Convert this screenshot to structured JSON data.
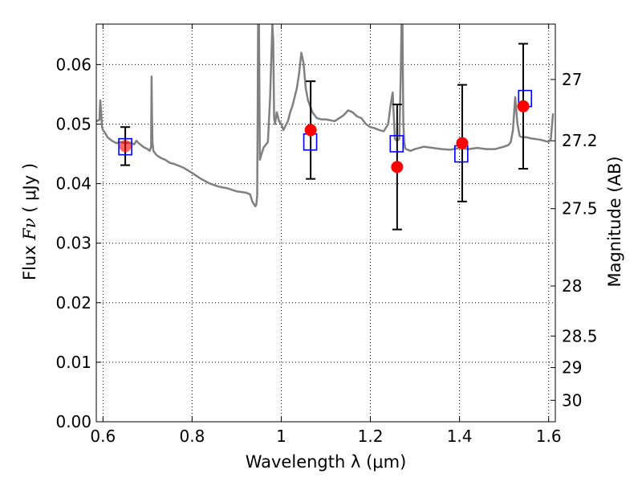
{
  "chart_data": {
    "type": "scatter",
    "xlabel": "Wavelength  λ (μm)",
    "ylabel_prefix": "Flux ",
    "ylabel_math": "Fν",
    "ylabel_unit": " ( μJy )",
    "y2label": "Magnitude (AB)",
    "xlim": [
      0.585,
      1.615
    ],
    "ylim": [
      0.0,
      0.0668
    ],
    "grid": true,
    "x_ticks": [
      0.6,
      0.8,
      1.0,
      1.2,
      1.4,
      1.6
    ],
    "x_tick_labels": [
      "0.6",
      "0.8",
      "1",
      "1.2",
      "1.4",
      "1.6"
    ],
    "y_ticks": [
      0.0,
      0.01,
      0.02,
      0.03,
      0.04,
      0.05,
      0.06
    ],
    "y_tick_labels": [
      "0.00",
      "0.01",
      "0.02",
      "0.03",
      "0.04",
      "0.05",
      "0.06"
    ],
    "y2_ticks": [
      {
        "flux": 0.0575,
        "label": "27"
      },
      {
        "flux": 0.0472,
        "label": "27.2"
      },
      {
        "flux": 0.0358,
        "label": "27.5"
      },
      {
        "flux": 0.0228,
        "label": "28"
      },
      {
        "flux": 0.0144,
        "label": "28.5"
      },
      {
        "flux": 0.0091,
        "label": "29"
      },
      {
        "flux": 0.0036,
        "label": "30"
      }
    ],
    "series": [
      {
        "kind": "model_spectrum",
        "color": "#808080",
        "x": [
          0.585,
          0.592,
          0.594,
          0.598,
          0.6,
          0.605,
          0.61,
          0.62,
          0.63,
          0.64,
          0.65,
          0.66,
          0.67,
          0.675,
          0.68,
          0.69,
          0.7,
          0.705,
          0.708,
          0.709,
          0.71,
          0.711,
          0.713,
          0.72,
          0.73,
          0.74,
          0.75,
          0.76,
          0.78,
          0.8,
          0.82,
          0.84,
          0.86,
          0.88,
          0.9,
          0.92,
          0.93,
          0.935,
          0.94,
          0.942,
          0.944,
          0.946,
          0.947,
          0.948,
          0.95,
          0.952,
          0.956,
          0.96,
          0.97,
          0.975,
          0.98,
          0.982,
          0.984,
          0.986,
          0.988,
          0.99,
          0.995,
          1.0,
          1.005,
          1.01,
          1.015,
          1.02,
          1.025,
          1.03,
          1.035,
          1.04,
          1.045,
          1.05,
          1.055,
          1.06,
          1.07,
          1.08,
          1.09,
          1.1,
          1.12,
          1.14,
          1.15,
          1.16,
          1.17,
          1.18,
          1.19,
          1.2,
          1.21,
          1.22,
          1.23,
          1.24,
          1.245,
          1.25,
          1.255,
          1.26,
          1.265,
          1.268,
          1.27,
          1.272,
          1.274,
          1.276,
          1.278,
          1.28,
          1.29,
          1.3,
          1.32,
          1.34,
          1.36,
          1.38,
          1.4,
          1.42,
          1.44,
          1.46,
          1.48,
          1.5,
          1.51,
          1.515,
          1.52,
          1.525,
          1.53,
          1.535,
          1.54,
          1.55,
          1.56,
          1.57,
          1.58,
          1.59,
          1.6,
          1.605,
          1.61
        ],
        "y": [
          0.0505,
          0.0507,
          0.054,
          0.0495,
          0.049,
          0.0485,
          0.0478,
          0.0472,
          0.0468,
          0.047,
          0.0468,
          0.0469,
          0.0466,
          0.0472,
          0.0468,
          0.0462,
          0.0458,
          0.0455,
          0.0462,
          0.058,
          0.0515,
          0.047,
          0.0455,
          0.0448,
          0.0443,
          0.044,
          0.0435,
          0.0433,
          0.0427,
          0.0418,
          0.0408,
          0.04,
          0.0395,
          0.0392,
          0.0387,
          0.0385,
          0.0382,
          0.037,
          0.0364,
          0.0362,
          0.0365,
          0.038,
          0.05,
          0.0668,
          0.0668,
          0.044,
          0.045,
          0.046,
          0.047,
          0.0545,
          0.0668,
          0.064,
          0.051,
          0.05,
          0.051,
          0.052,
          0.0505,
          0.05,
          0.049,
          0.0498,
          0.0505,
          0.052,
          0.053,
          0.0545,
          0.056,
          0.0585,
          0.062,
          0.0603,
          0.056,
          0.054,
          0.052,
          0.051,
          0.0508,
          0.0508,
          0.0505,
          0.0515,
          0.0523,
          0.052,
          0.0513,
          0.051,
          0.05,
          0.0495,
          0.0493,
          0.049,
          0.0488,
          0.05,
          0.053,
          0.0553,
          0.0475,
          0.0472,
          0.0475,
          0.058,
          0.0668,
          0.0668,
          0.05,
          0.047,
          0.046,
          0.0458,
          0.0455,
          0.0458,
          0.0462,
          0.046,
          0.0458,
          0.0457,
          0.046,
          0.0458,
          0.046,
          0.0458,
          0.0458,
          0.0462,
          0.0465,
          0.047,
          0.049,
          0.0545,
          0.05,
          0.048,
          0.0478,
          0.0478,
          0.0476,
          0.0475,
          0.0474,
          0.0472,
          0.047,
          0.0475,
          0.0518
        ]
      },
      {
        "kind": "observed_flux",
        "color": "#ff0000",
        "x": [
          0.65,
          1.066,
          1.26,
          1.406,
          1.543
        ],
        "y": [
          0.0463,
          0.049,
          0.0428,
          0.0468,
          0.053
        ],
        "yerr": [
          0.0032,
          0.0082,
          0.0105,
          0.0098,
          0.0105
        ]
      },
      {
        "kind": "model_band_flux",
        "color": "#0000ff",
        "x": [
          0.65,
          1.065,
          1.259,
          1.404,
          1.547
        ],
        "y": [
          0.0462,
          0.047,
          0.0467,
          0.045,
          0.0543
        ]
      }
    ]
  }
}
